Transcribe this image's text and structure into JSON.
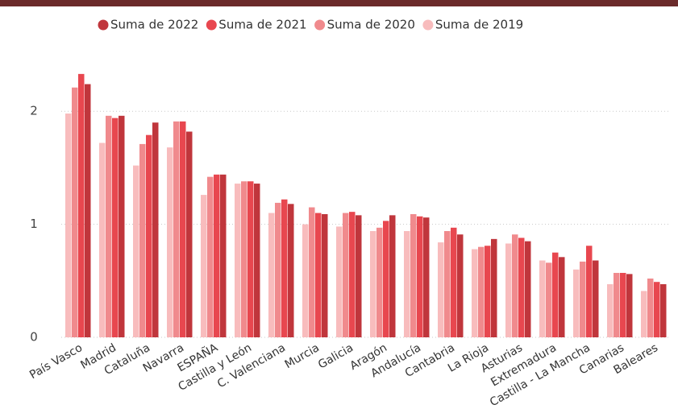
{
  "chart_data": {
    "type": "bar",
    "categories": [
      "País Vasco",
      "Madrid",
      "Cataluña",
      "Navarra",
      "ESPAÑA",
      "Castilla y León",
      "C. Valenciana",
      "Murcia",
      "Galicia",
      "Aragón",
      "Andalucía",
      "Cantabria",
      "La Rioja",
      "Asturias",
      "Extremadura",
      "Castilla - La Mancha",
      "Canarias",
      "Baleares"
    ],
    "series": [
      {
        "name": "Suma de 2022",
        "color": "#c0363c",
        "values": [
          2.24,
          1.96,
          1.9,
          1.82,
          1.44,
          1.36,
          1.18,
          1.09,
          1.08,
          1.08,
          1.06,
          0.91,
          0.87,
          0.85,
          0.71,
          0.68,
          0.56,
          0.47
        ]
      },
      {
        "name": "Suma de 2021",
        "color": "#e8474f",
        "values": [
          2.33,
          1.94,
          1.79,
          1.91,
          1.44,
          1.38,
          1.22,
          1.1,
          1.11,
          1.03,
          1.07,
          0.97,
          0.81,
          0.88,
          0.75,
          0.81,
          0.57,
          0.49
        ]
      },
      {
        "name": "Suma de 2020",
        "color": "#f08a8d",
        "values": [
          2.21,
          1.96,
          1.71,
          1.91,
          1.42,
          1.38,
          1.19,
          1.15,
          1.1,
          0.97,
          1.09,
          0.94,
          0.8,
          0.91,
          0.66,
          0.67,
          0.57,
          0.52
        ]
      },
      {
        "name": "Suma de 2019",
        "color": "#f8bcbd",
        "values": [
          1.98,
          1.72,
          1.52,
          1.68,
          1.26,
          1.36,
          1.1,
          1.0,
          0.98,
          0.94,
          0.94,
          0.84,
          0.78,
          0.83,
          0.68,
          0.6,
          0.47,
          0.41
        ]
      }
    ],
    "ylim": [
      0,
      2.5
    ],
    "yticks": [
      0,
      1,
      2
    ],
    "grid": true,
    "legend": "top"
  }
}
